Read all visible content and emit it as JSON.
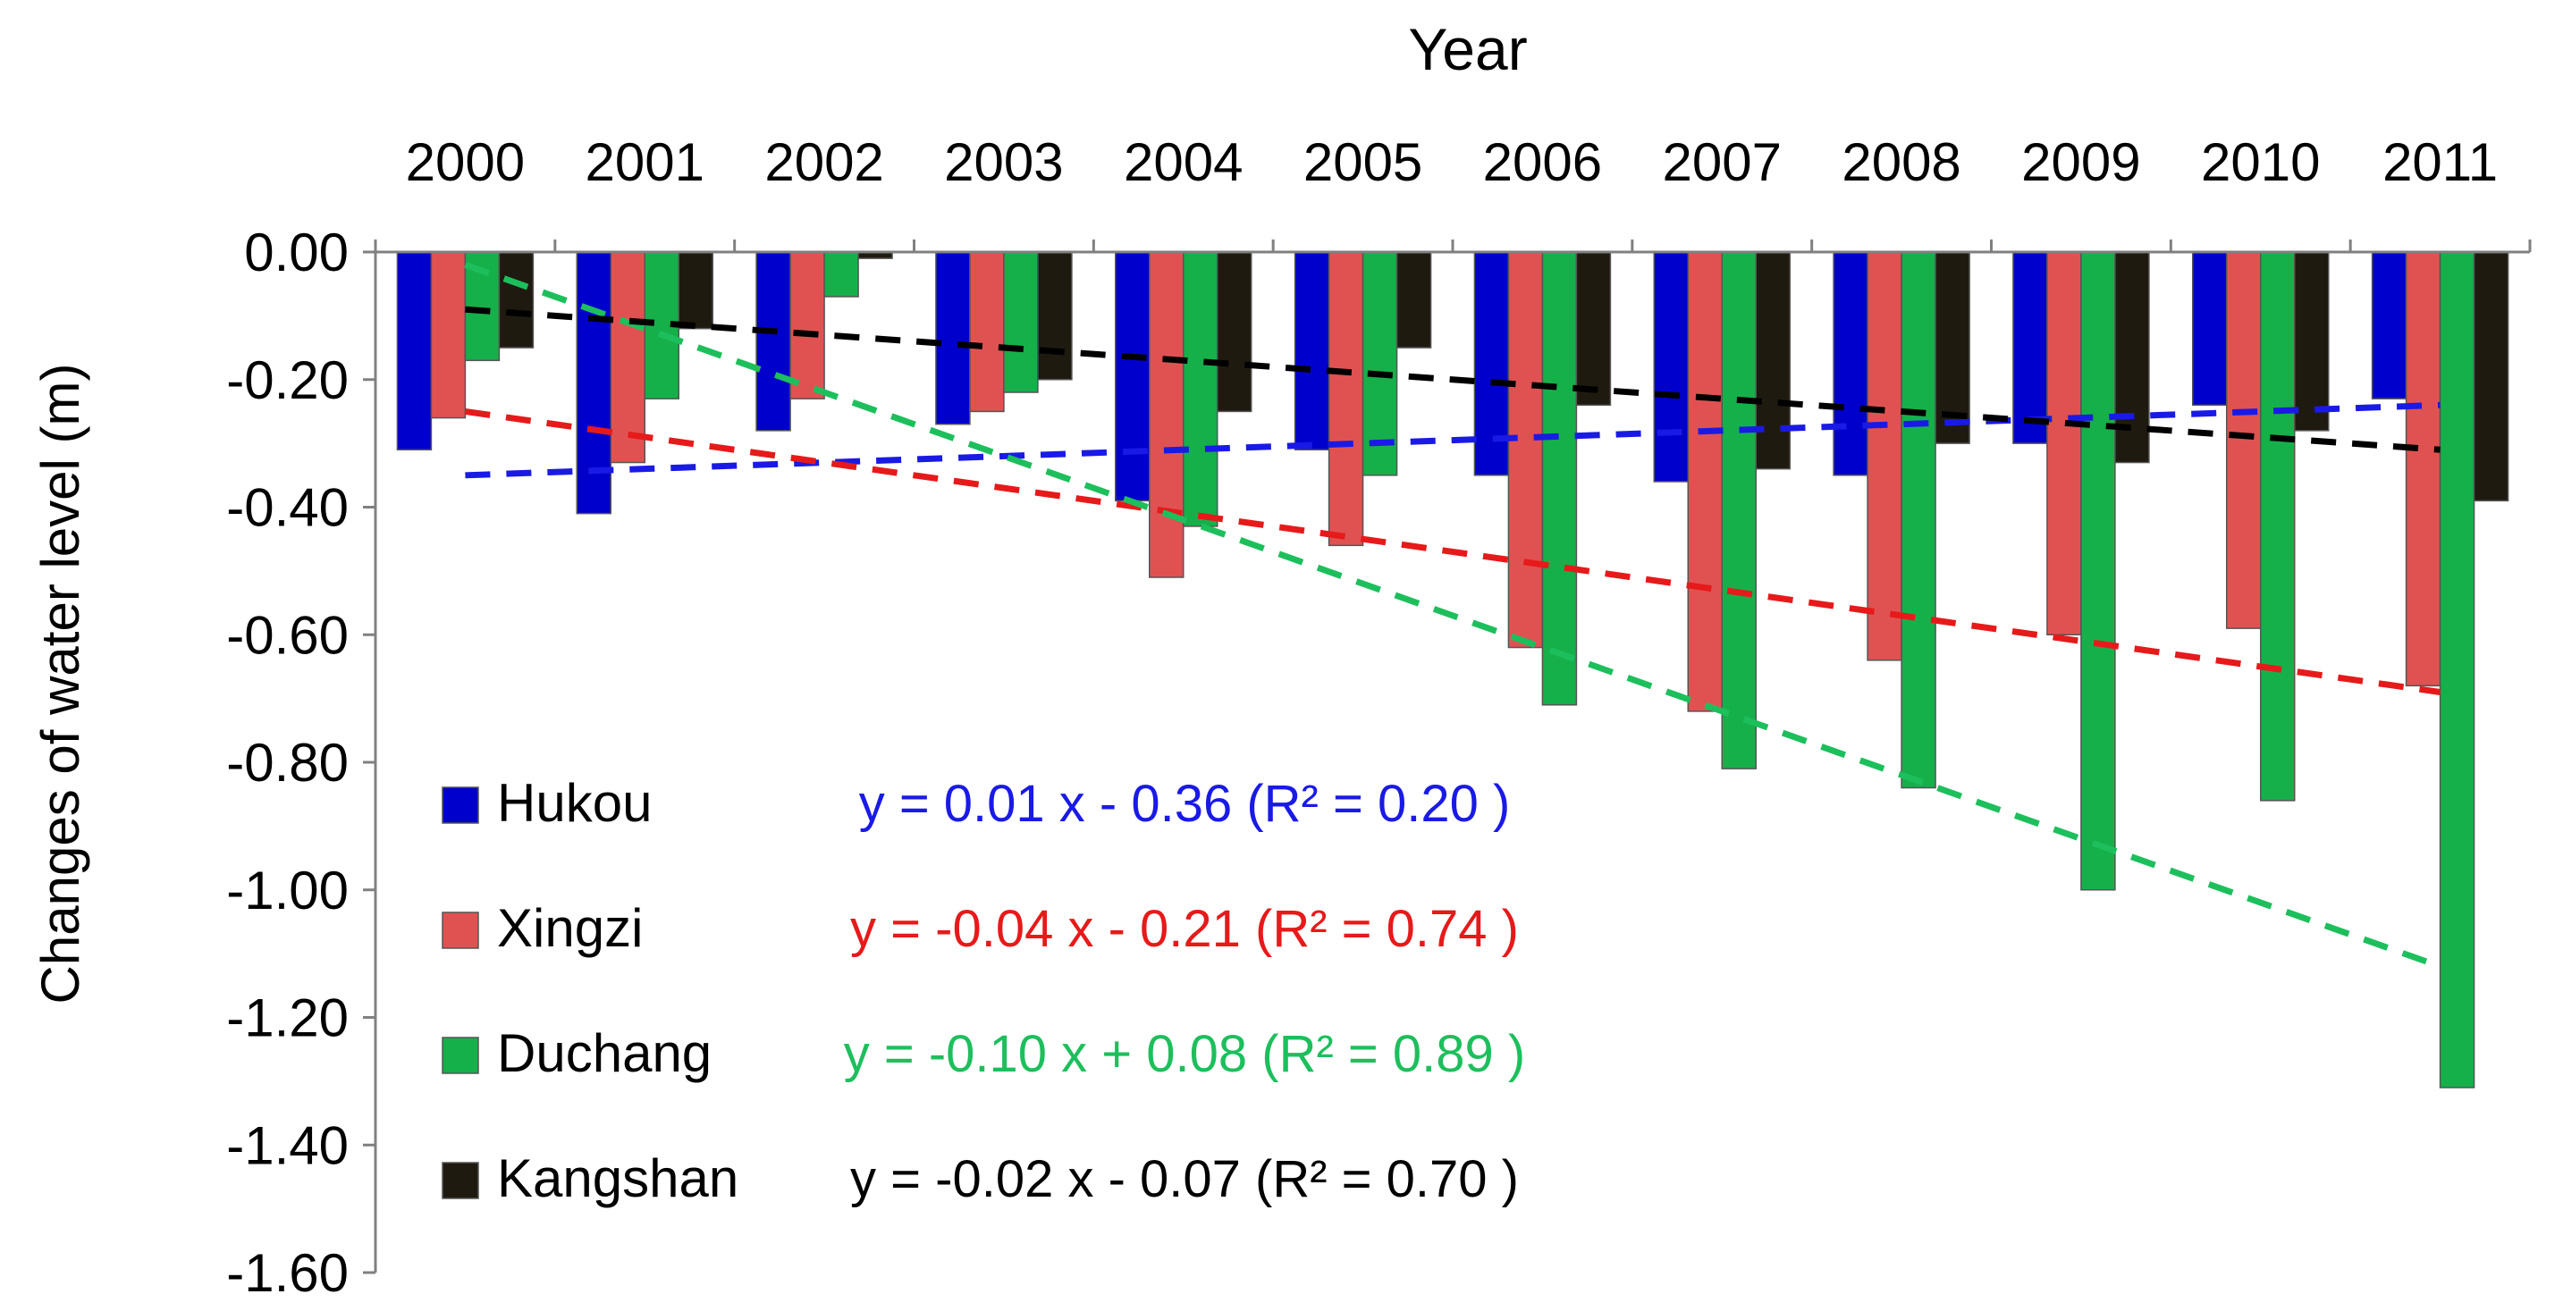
{
  "chart_data": {
    "type": "bar",
    "xlabel": "Year",
    "ylabel": "Changes of water level (m)",
    "x_axis_position": "top",
    "ylim": [
      -1.6,
      0.0
    ],
    "yticks": [
      0.0,
      -0.2,
      -0.4,
      -0.6,
      -0.8,
      -1.0,
      -1.2,
      -1.4,
      -1.6
    ],
    "ytick_labels": [
      "0.00",
      "-0.20",
      "-0.40",
      "-0.60",
      "-0.80",
      "-1.00",
      "-1.20",
      "-1.40",
      "-1.60"
    ],
    "grid": false,
    "legend_position": "bottom-left",
    "categories": [
      "2000",
      "2001",
      "2002",
      "2003",
      "2004",
      "2005",
      "2006",
      "2007",
      "2008",
      "2009",
      "2010",
      "2011"
    ],
    "series": [
      {
        "name": "Hukou",
        "color": "#0000cc",
        "values": [
          -0.31,
          -0.41,
          -0.28,
          -0.27,
          -0.39,
          -0.31,
          -0.35,
          -0.36,
          -0.35,
          -0.3,
          -0.24,
          -0.23
        ],
        "trend": {
          "slope": 0.01,
          "intercept": -0.36,
          "color": "#1a1ae6",
          "equation": "y = 0.01 x - 0.36 (R² = 0.20 )"
        }
      },
      {
        "name": "Xingzi",
        "color": "#e05252",
        "values": [
          -0.26,
          -0.33,
          -0.23,
          -0.25,
          -0.51,
          -0.46,
          -0.62,
          -0.72,
          -0.64,
          -0.6,
          -0.59,
          -0.68
        ],
        "trend": {
          "slope": -0.04,
          "intercept": -0.21,
          "color": "#e61a1a",
          "equation": "y = -0.04 x - 0.21 (R² = 0.74 )"
        }
      },
      {
        "name": "Duchang",
        "color": "#16b04a",
        "values": [
          -0.17,
          -0.23,
          -0.07,
          -0.22,
          -0.43,
          -0.35,
          -0.71,
          -0.81,
          -0.84,
          -1.0,
          -0.86,
          -1.31
        ],
        "trend": {
          "slope": -0.1,
          "intercept": 0.08,
          "color": "#1dbf5c",
          "equation": "y = -0.10 x + 0.08 (R² = 0.89 )"
        }
      },
      {
        "name": "Kangshan",
        "color": "#1f1a10",
        "values": [
          -0.15,
          -0.12,
          -0.01,
          -0.2,
          -0.25,
          -0.15,
          -0.24,
          -0.34,
          -0.3,
          -0.33,
          -0.28,
          -0.39
        ],
        "trend": {
          "slope": -0.02,
          "intercept": -0.07,
          "color": "#000000",
          "equation": "y = -0.02 x - 0.07 (R² = 0.70 )"
        }
      }
    ]
  }
}
